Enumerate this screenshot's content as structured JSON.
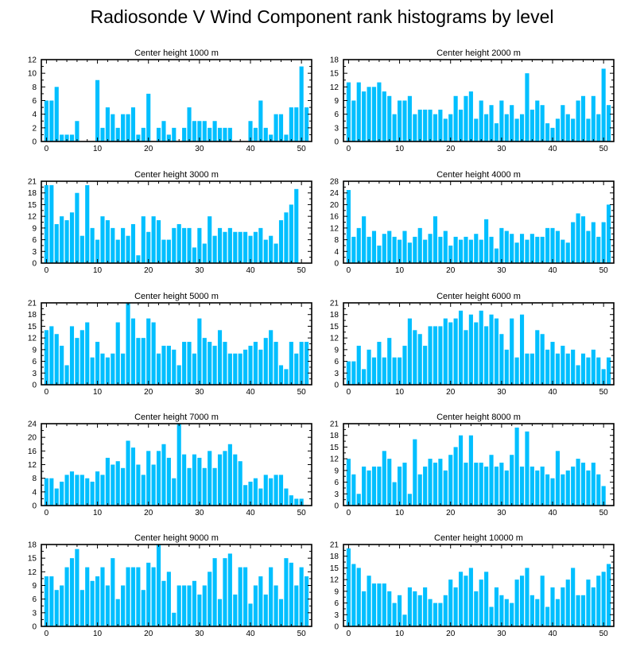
{
  "title": "Radiosonde V Wind Component rank histograms by level",
  "colors": {
    "bar": "#00BFFF",
    "axis": "#000000",
    "background": "#ffffff"
  },
  "chart_data": [
    {
      "type": "bar",
      "title": "Center height 1000 m",
      "xlabel": "",
      "ylabel": "",
      "xlim": [
        -1,
        52
      ],
      "ylim": [
        0,
        12
      ],
      "yticks": [
        0,
        2,
        4,
        6,
        8,
        10,
        12
      ],
      "xticks": [
        0,
        10,
        20,
        30,
        40,
        50
      ],
      "values": [
        6,
        6,
        8,
        1,
        1,
        1,
        3,
        0,
        0,
        0,
        9,
        2,
        5,
        4,
        2,
        4,
        4,
        5,
        1,
        2,
        7,
        0,
        2,
        3,
        1,
        2,
        0,
        2,
        5,
        3,
        3,
        3,
        2,
        3,
        2,
        2,
        2,
        0,
        0,
        0,
        3,
        2,
        6,
        2,
        1,
        4,
        4,
        1,
        5,
        5,
        11,
        5
      ]
    },
    {
      "type": "bar",
      "title": "Center height 2000 m",
      "xlabel": "",
      "ylabel": "",
      "xlim": [
        -1,
        52
      ],
      "ylim": [
        0,
        18
      ],
      "yticks": [
        0,
        3,
        6,
        9,
        12,
        15,
        18
      ],
      "xticks": [
        0,
        10,
        20,
        30,
        40,
        50
      ],
      "values": [
        13,
        9,
        13,
        11,
        12,
        12,
        13,
        11,
        10,
        6,
        9,
        9,
        10,
        6,
        7,
        7,
        7,
        6,
        7,
        5,
        6,
        10,
        7,
        10,
        11,
        5,
        9,
        6,
        8,
        4,
        9,
        6,
        8,
        5,
        6,
        15,
        7,
        9,
        8,
        4,
        3,
        5,
        8,
        6,
        5,
        9,
        10,
        5,
        10,
        6,
        16,
        8
      ]
    },
    {
      "type": "bar",
      "title": "Center height 3000 m",
      "xlabel": "",
      "ylabel": "",
      "xlim": [
        -1,
        52
      ],
      "ylim": [
        0,
        21
      ],
      "yticks": [
        0,
        3,
        6,
        9,
        12,
        15,
        18,
        21
      ],
      "xticks": [
        0,
        10,
        20,
        30,
        40,
        50
      ],
      "values": [
        20,
        20,
        10,
        12,
        11,
        13,
        18,
        7,
        20,
        9,
        6,
        12,
        11,
        9,
        6,
        9,
        7,
        10,
        2,
        12,
        8,
        12,
        11,
        6,
        6,
        9,
        10,
        9,
        9,
        4,
        9,
        5,
        12,
        7,
        9,
        8,
        9,
        8,
        8,
        8,
        7,
        8,
        9,
        6,
        7,
        5,
        11,
        13,
        15,
        19,
        0,
        0
      ]
    },
    {
      "type": "bar",
      "title": "Center height 4000 m",
      "xlabel": "",
      "ylabel": "",
      "xlim": [
        -1,
        52
      ],
      "ylim": [
        0,
        28
      ],
      "yticks": [
        0,
        4,
        8,
        12,
        16,
        20,
        24,
        28
      ],
      "xticks": [
        0,
        10,
        20,
        30,
        40,
        50
      ],
      "values": [
        25,
        9,
        12,
        16,
        9,
        11,
        6,
        10,
        11,
        9,
        8,
        11,
        7,
        9,
        12,
        8,
        10,
        16,
        9,
        11,
        6,
        9,
        8,
        9,
        8,
        10,
        8,
        15,
        9,
        5,
        12,
        11,
        10,
        7,
        10,
        8,
        10,
        9,
        9,
        12,
        12,
        11,
        8,
        7,
        14,
        17,
        16,
        11,
        14,
        9,
        14,
        20
      ]
    },
    {
      "type": "bar",
      "title": "Center height 5000 m",
      "xlabel": "",
      "ylabel": "",
      "xlim": [
        -1,
        52
      ],
      "ylim": [
        0,
        21
      ],
      "yticks": [
        0,
        3,
        6,
        9,
        12,
        15,
        18,
        21
      ],
      "xticks": [
        0,
        10,
        20,
        30,
        40,
        50
      ],
      "values": [
        14,
        15,
        13,
        10,
        5,
        15,
        12,
        14,
        16,
        7,
        11,
        8,
        7,
        8,
        16,
        8,
        21,
        17,
        12,
        12,
        17,
        16,
        8,
        10,
        10,
        9,
        5,
        11,
        11,
        8,
        17,
        12,
        11,
        10,
        14,
        11,
        8,
        8,
        8,
        9,
        10,
        11,
        9,
        12,
        14,
        11,
        5,
        4,
        11,
        8,
        11,
        11
      ]
    },
    {
      "type": "bar",
      "title": "Center height 6000 m",
      "xlabel": "",
      "ylabel": "",
      "xlim": [
        -1,
        52
      ],
      "ylim": [
        0,
        21
      ],
      "yticks": [
        0,
        3,
        6,
        9,
        12,
        15,
        18,
        21
      ],
      "xticks": [
        0,
        10,
        20,
        30,
        40,
        50
      ],
      "values": [
        6,
        6,
        10,
        4,
        9,
        7,
        11,
        7,
        12,
        7,
        7,
        10,
        17,
        14,
        13,
        10,
        15,
        15,
        15,
        17,
        16,
        17,
        19,
        14,
        18,
        16,
        19,
        15,
        18,
        17,
        13,
        9,
        17,
        7,
        18,
        8,
        8,
        14,
        13,
        9,
        11,
        8,
        10,
        8,
        9,
        5,
        8,
        7,
        9,
        7,
        4,
        7
      ]
    },
    {
      "type": "bar",
      "title": "Center height 7000 m",
      "xlabel": "",
      "ylabel": "",
      "xlim": [
        -1,
        52
      ],
      "ylim": [
        0,
        24
      ],
      "yticks": [
        0,
        4,
        8,
        12,
        16,
        20,
        24
      ],
      "xticks": [
        0,
        10,
        20,
        30,
        40,
        50
      ],
      "values": [
        8,
        8,
        5,
        7,
        9,
        10,
        9,
        9,
        8,
        7,
        10,
        9,
        14,
        12,
        13,
        11,
        19,
        17,
        12,
        9,
        16,
        12,
        16,
        18,
        14,
        8,
        24,
        15,
        11,
        15,
        14,
        11,
        16,
        11,
        15,
        16,
        18,
        15,
        13,
        6,
        7,
        8,
        5,
        9,
        8,
        9,
        9,
        5,
        3,
        2,
        2,
        0
      ]
    },
    {
      "type": "bar",
      "title": "Center height 8000 m",
      "xlabel": "",
      "ylabel": "",
      "xlim": [
        -1,
        52
      ],
      "ylim": [
        0,
        21
      ],
      "yticks": [
        0,
        3,
        6,
        9,
        12,
        15,
        18,
        21
      ],
      "xticks": [
        0,
        10,
        20,
        30,
        40,
        50
      ],
      "values": [
        12,
        8,
        3,
        10,
        9,
        10,
        10,
        14,
        12,
        6,
        10,
        11,
        3,
        17,
        8,
        10,
        12,
        11,
        12,
        9,
        13,
        15,
        18,
        11,
        18,
        11,
        11,
        10,
        13,
        10,
        11,
        9,
        13,
        20,
        10,
        19,
        10,
        9,
        10,
        8,
        7,
        14,
        8,
        9,
        10,
        12,
        11,
        9,
        11,
        8,
        5,
        0
      ]
    },
    {
      "type": "bar",
      "title": "Center height 9000 m",
      "xlabel": "",
      "ylabel": "",
      "xlim": [
        -1,
        52
      ],
      "ylim": [
        0,
        18
      ],
      "yticks": [
        0,
        3,
        6,
        9,
        12,
        15,
        18
      ],
      "xticks": [
        0,
        10,
        20,
        30,
        40,
        50
      ],
      "values": [
        11,
        11,
        8,
        9,
        13,
        15,
        17,
        8,
        13,
        10,
        11,
        13,
        9,
        15,
        6,
        9,
        13,
        13,
        13,
        8,
        14,
        13,
        18,
        10,
        12,
        3,
        9,
        9,
        9,
        10,
        7,
        9,
        12,
        15,
        6,
        15,
        16,
        7,
        13,
        13,
        5,
        9,
        11,
        7,
        13,
        9,
        6,
        15,
        14,
        9,
        13,
        11
      ]
    },
    {
      "type": "bar",
      "title": "Center height 10000 m",
      "xlabel": "",
      "ylabel": "",
      "xlim": [
        -1,
        52
      ],
      "ylim": [
        0,
        21
      ],
      "yticks": [
        0,
        3,
        6,
        9,
        12,
        15,
        18,
        21
      ],
      "xticks": [
        0,
        10,
        20,
        30,
        40,
        50
      ],
      "values": [
        20,
        16,
        15,
        9,
        13,
        11,
        11,
        11,
        9,
        6,
        8,
        3,
        10,
        9,
        8,
        10,
        7,
        6,
        6,
        8,
        12,
        10,
        14,
        13,
        15,
        9,
        12,
        14,
        5,
        10,
        8,
        7,
        6,
        12,
        13,
        15,
        8,
        7,
        13,
        5,
        10,
        7,
        10,
        12,
        15,
        8,
        8,
        12,
        10,
        13,
        14,
        16
      ]
    }
  ]
}
